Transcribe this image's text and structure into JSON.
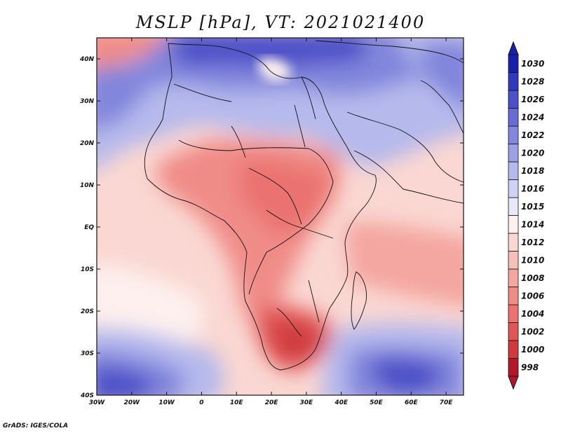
{
  "figure": {
    "title": "MSLP [hPa], VT: 2021021400",
    "credit": "GrADS: IGES/COLA"
  },
  "map_data": {
    "variable": "MSLP",
    "units": "hPa",
    "valid_time": "2021021400",
    "lon_range": [
      -30,
      75
    ],
    "lat_range": [
      -40,
      45
    ],
    "lon_ticks": [
      "30W",
      "20W",
      "10W",
      "0",
      "10E",
      "20E",
      "30E",
      "40E",
      "50E",
      "60E",
      "70E"
    ],
    "lat_ticks": [
      "40N",
      "30N",
      "20N",
      "10N",
      "EQ",
      "10S",
      "20S",
      "30S",
      "40S"
    ],
    "colorbar_levels": [
      998,
      1000,
      1002,
      1004,
      1006,
      1008,
      1010,
      1012,
      1014,
      1015,
      1016,
      1018,
      1020,
      1022,
      1024,
      1026,
      1028,
      1030
    ],
    "colorbar_colors": [
      "#b2182b",
      "#cf3a3c",
      "#e05555",
      "#ea7270",
      "#f08c88",
      "#f4a6a0",
      "#f7bfb9",
      "#fad7d2",
      "#fdf0ee",
      "#e8e8f8",
      "#d0d2f3",
      "#b6b9ec",
      "#9ca0e4",
      "#8286dc",
      "#676bd3",
      "#4d51c8",
      "#3438bc",
      "#1c1faa"
    ]
  }
}
